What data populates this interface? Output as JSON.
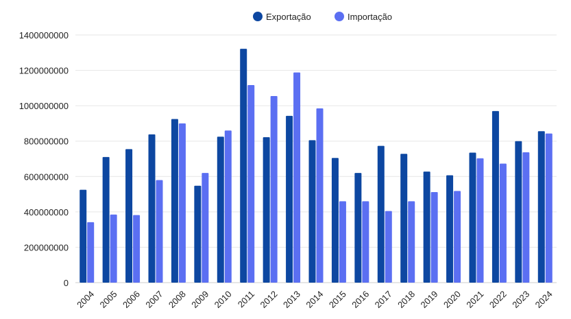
{
  "chart_data": {
    "type": "bar",
    "title": "",
    "xlabel": "",
    "ylabel": "",
    "legend_position": "top-center",
    "grid": true,
    "ylim": [
      0,
      1400000000
    ],
    "yticks": [
      0,
      200000000,
      400000000,
      600000000,
      800000000,
      1000000000,
      1200000000,
      1400000000
    ],
    "ytick_labels": [
      "0",
      "200000000",
      "400000000",
      "600000000",
      "800000000",
      "1000000000",
      "1200000000",
      "1400000000"
    ],
    "categories": [
      "2004",
      "2005",
      "2006",
      "2007",
      "2008",
      "2009",
      "2010",
      "2011",
      "2012",
      "2013",
      "2014",
      "2015",
      "2016",
      "2017",
      "2018",
      "2019",
      "2020",
      "2021",
      "2022",
      "2023",
      "2024"
    ],
    "series": [
      {
        "name": "Exportação",
        "color": "#0d47a1",
        "values": [
          525000000,
          710000000,
          755000000,
          838000000,
          925000000,
          548000000,
          825000000,
          1322000000,
          822000000,
          943000000,
          805000000,
          705000000,
          620000000,
          773000000,
          728000000,
          628000000,
          607000000,
          735000000,
          970000000,
          800000000,
          856000000
        ]
      },
      {
        "name": "Importação",
        "color": "#5b6ff2",
        "values": [
          342000000,
          385000000,
          382000000,
          580000000,
          900000000,
          620000000,
          860000000,
          1117000000,
          1055000000,
          1188000000,
          985000000,
          460000000,
          460000000,
          405000000,
          460000000,
          512000000,
          518000000,
          703000000,
          673000000,
          737000000,
          843000000
        ]
      }
    ]
  }
}
